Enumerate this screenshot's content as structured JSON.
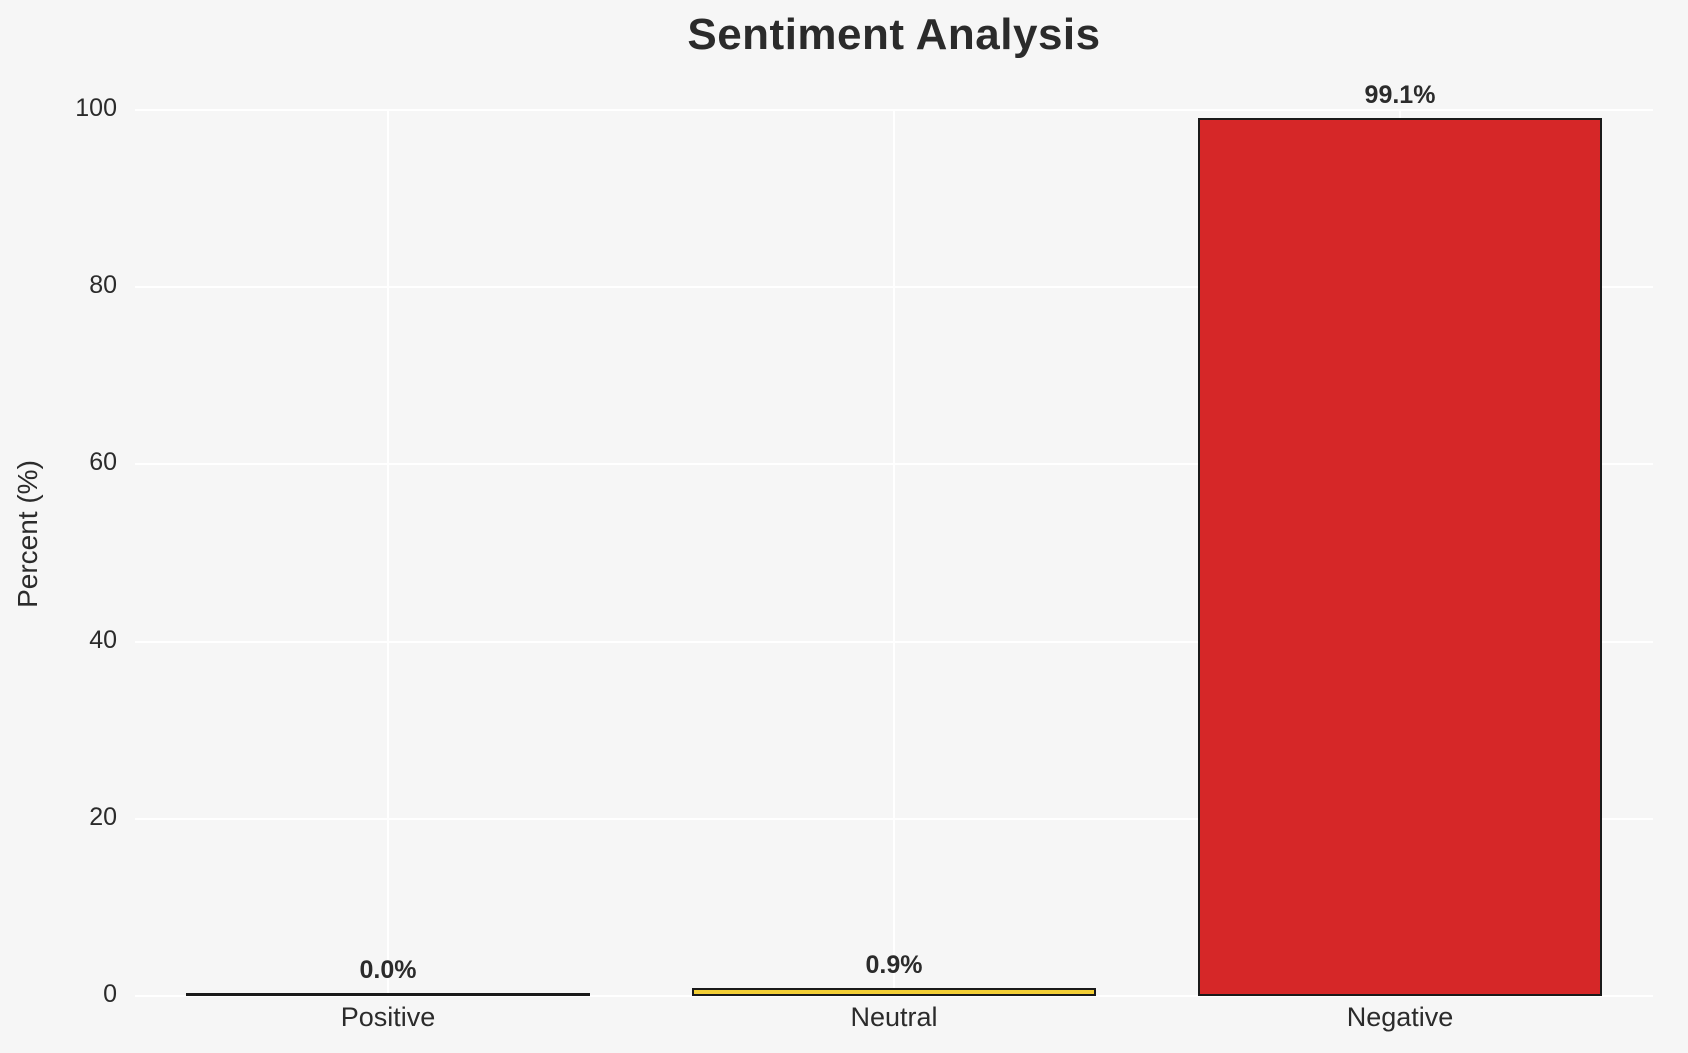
{
  "chart_data": {
    "type": "bar",
    "title": "Sentiment Analysis",
    "xlabel": "",
    "ylabel": "Percent (%)",
    "ylim": [
      0,
      100
    ],
    "yticks": [
      0,
      20,
      40,
      60,
      80,
      100
    ],
    "grid": true,
    "legend": "none",
    "categories": [
      "Positive",
      "Neutral",
      "Negative"
    ],
    "values": [
      0.0,
      0.9,
      99.1
    ],
    "bar_labels": [
      "0.0%",
      "0.9%",
      "99.1%"
    ],
    "bar_fill_colors": [
      "none",
      "#f2ce35",
      "#d62728"
    ],
    "bar_edge_color": "#1a1a1a",
    "colors": {
      "background": "#f6f6f6",
      "gridline": "#ffffff",
      "text": "#2b2b2b"
    }
  }
}
